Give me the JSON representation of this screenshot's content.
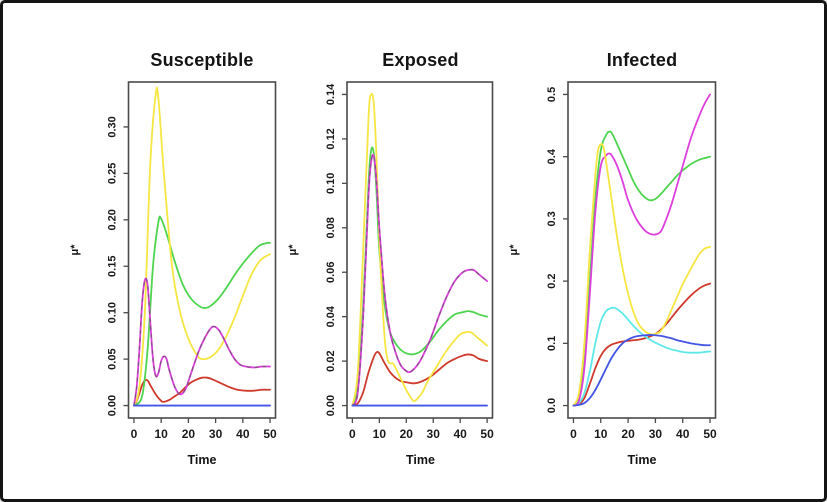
{
  "window": {
    "background": "#ffffff",
    "border_color": "#141414",
    "axis_color": "#4a4a4a",
    "text_color": "#1a1a1a"
  },
  "chart_data": [
    {
      "type": "line",
      "title": "Susceptible",
      "xlabel": "Time",
      "ylabel": "μ*",
      "xlim": [
        0,
        50
      ],
      "ylim": [
        0,
        0.335
      ],
      "grid": false,
      "legend": "none",
      "xticks": {
        "values": [
          0,
          10,
          20,
          30,
          40,
          50
        ],
        "labels": [
          "0",
          "10",
          "20",
          "30",
          "40",
          "50"
        ]
      },
      "yticks": {
        "values": [
          0,
          0.05,
          0.1,
          0.15,
          0.2,
          0.25,
          0.3
        ],
        "labels": [
          "0.00",
          "0.05",
          "0.10",
          "0.15",
          "0.20",
          "0.25",
          "0.30"
        ]
      },
      "series": [
        {
          "name": "red",
          "color": "#cf3a2c",
          "x": [
            0,
            1,
            2,
            3,
            4,
            5,
            6,
            8,
            10,
            11,
            13,
            15,
            17,
            19,
            21,
            23,
            25,
            27,
            29,
            32,
            35,
            38,
            41,
            44,
            47,
            50
          ],
          "y": [
            0,
            0.005,
            0.013,
            0.022,
            0.027,
            0.027,
            0.022,
            0.012,
            0.005,
            0.004,
            0.006,
            0.01,
            0.014,
            0.02,
            0.025,
            0.028,
            0.03,
            0.03,
            0.028,
            0.024,
            0.02,
            0.017,
            0.016,
            0.016,
            0.017,
            0.017
          ]
        },
        {
          "name": "green",
          "color": "#4ed44e",
          "x": [
            0,
            3,
            5,
            7,
            9,
            10,
            12,
            15,
            18,
            21,
            24,
            26,
            28,
            31,
            34,
            38,
            42,
            46,
            49,
            50
          ],
          "y": [
            0,
            0.01,
            0.06,
            0.15,
            0.198,
            0.201,
            0.185,
            0.155,
            0.13,
            0.115,
            0.107,
            0.105,
            0.107,
            0.115,
            0.127,
            0.145,
            0.16,
            0.172,
            0.175,
            0.175
          ]
        },
        {
          "name": "yellow",
          "color": "#f5e642",
          "x": [
            0,
            2,
            4,
            6,
            8,
            9,
            11,
            14,
            17,
            20,
            23,
            25,
            28,
            31,
            34,
            37,
            40,
            43,
            46,
            48,
            50
          ],
          "y": [
            0,
            0.02,
            0.1,
            0.26,
            0.335,
            0.33,
            0.25,
            0.15,
            0.1,
            0.072,
            0.055,
            0.05,
            0.052,
            0.06,
            0.075,
            0.095,
            0.118,
            0.14,
            0.155,
            0.16,
            0.163
          ]
        },
        {
          "name": "magenta",
          "color": "#dd3fdd",
          "dash_overlay": "#5a5a5a",
          "x": [
            0,
            1,
            2,
            3,
            4,
            5,
            6,
            7,
            8,
            9,
            10,
            11,
            12,
            13,
            15,
            17,
            19,
            21,
            24,
            27,
            29,
            31,
            33,
            35,
            37,
            39,
            41,
            44,
            47,
            50
          ],
          "y": [
            0,
            0.02,
            0.06,
            0.11,
            0.135,
            0.13,
            0.09,
            0.05,
            0.032,
            0.035,
            0.048,
            0.053,
            0.05,
            0.038,
            0.02,
            0.012,
            0.018,
            0.035,
            0.06,
            0.078,
            0.085,
            0.082,
            0.072,
            0.06,
            0.05,
            0.044,
            0.042,
            0.041,
            0.042,
            0.042
          ]
        },
        {
          "name": "blue",
          "color": "#4455e6",
          "x": [
            0,
            10,
            20,
            30,
            40,
            50
          ],
          "y": [
            0,
            0,
            0,
            0,
            0,
            0
          ]
        }
      ]
    },
    {
      "type": "line",
      "title": "Exposed",
      "xlabel": "Time",
      "ylabel": "μ*",
      "xlim": [
        0,
        50
      ],
      "ylim": [
        0,
        0.14
      ],
      "grid": false,
      "legend": "none",
      "xticks": {
        "values": [
          0,
          10,
          20,
          30,
          40,
          50
        ],
        "labels": [
          "0",
          "10",
          "20",
          "30",
          "40",
          "50"
        ]
      },
      "yticks": {
        "values": [
          0,
          0.02,
          0.04,
          0.06,
          0.08,
          0.1,
          0.12,
          0.14
        ],
        "labels": [
          "0.00",
          "0.02",
          "0.04",
          "0.06",
          "0.08",
          "0.10",
          "0.12",
          "0.14"
        ]
      },
      "series": [
        {
          "name": "red",
          "color": "#cf3a2c",
          "x": [
            0,
            2,
            4,
            6,
            8,
            9,
            10,
            12,
            14,
            16,
            18,
            20,
            23,
            26,
            29,
            32,
            35,
            38,
            41,
            43,
            45,
            47,
            50
          ],
          "y": [
            0,
            0.001,
            0.006,
            0.015,
            0.022,
            0.024,
            0.0235,
            0.019,
            0.015,
            0.0125,
            0.011,
            0.0105,
            0.01,
            0.011,
            0.013,
            0.016,
            0.019,
            0.021,
            0.0225,
            0.023,
            0.0225,
            0.021,
            0.02
          ]
        },
        {
          "name": "green",
          "color": "#4ed44e",
          "x": [
            0,
            2,
            4,
            6,
            7,
            8,
            9,
            10,
            12,
            14,
            16,
            18,
            20,
            22,
            24,
            26,
            29,
            32,
            35,
            38,
            41,
            43,
            45,
            47,
            50
          ],
          "y": [
            0,
            0.008,
            0.045,
            0.1,
            0.115,
            0.113,
            0.095,
            0.07,
            0.045,
            0.033,
            0.028,
            0.025,
            0.0235,
            0.023,
            0.0235,
            0.025,
            0.029,
            0.034,
            0.038,
            0.041,
            0.042,
            0.0425,
            0.042,
            0.041,
            0.04
          ]
        },
        {
          "name": "yellow",
          "color": "#f5e642",
          "x": [
            0,
            2,
            4,
            6,
            7,
            8,
            9,
            10,
            11,
            12,
            13,
            14,
            15,
            16,
            18,
            20,
            22,
            23,
            24,
            26,
            28,
            31,
            34,
            37,
            40,
            42,
            44,
            46,
            48,
            50
          ],
          "y": [
            0,
            0.015,
            0.07,
            0.13,
            0.14,
            0.135,
            0.11,
            0.075,
            0.05,
            0.03,
            0.021,
            0.019,
            0.019,
            0.017,
            0.012,
            0.007,
            0.003,
            0.002,
            0.003,
            0.006,
            0.011,
            0.017,
            0.023,
            0.028,
            0.032,
            0.033,
            0.033,
            0.031,
            0.029,
            0.027
          ]
        },
        {
          "name": "magenta",
          "color": "#dd3fdd",
          "dash_overlay": "#5a5a5a",
          "x": [
            0,
            2,
            4,
            6,
            7,
            8,
            9,
            10,
            12,
            14,
            16,
            18,
            20,
            21,
            22,
            24,
            26,
            29,
            32,
            35,
            38,
            41,
            43,
            45,
            47,
            50
          ],
          "y": [
            0,
            0.006,
            0.04,
            0.095,
            0.11,
            0.112,
            0.1,
            0.08,
            0.05,
            0.033,
            0.024,
            0.018,
            0.0155,
            0.015,
            0.0155,
            0.018,
            0.022,
            0.03,
            0.04,
            0.049,
            0.056,
            0.06,
            0.061,
            0.061,
            0.059,
            0.056
          ]
        },
        {
          "name": "blue",
          "color": "#4455e6",
          "x": [
            0,
            10,
            20,
            30,
            40,
            50
          ],
          "y": [
            0,
            0,
            0,
            0,
            0,
            0
          ]
        }
      ]
    },
    {
      "type": "line",
      "title": "Infected",
      "xlabel": "Time",
      "ylabel": "μ*",
      "xlim": [
        0,
        50
      ],
      "ylim": [
        0,
        0.5
      ],
      "grid": false,
      "legend": "none",
      "xticks": {
        "values": [
          0,
          10,
          20,
          30,
          40,
          50
        ],
        "labels": [
          "0",
          "10",
          "20",
          "30",
          "40",
          "50"
        ]
      },
      "yticks": {
        "values": [
          0,
          0.1,
          0.2,
          0.3,
          0.4,
          0.5
        ],
        "labels": [
          "0.0",
          "0.1",
          "0.2",
          "0.3",
          "0.4",
          "0.5"
        ]
      },
      "series": [
        {
          "name": "red",
          "color": "#cf3a2c",
          "x": [
            0,
            2,
            4,
            6,
            8,
            10,
            12,
            14,
            16,
            18,
            20,
            22,
            24,
            26,
            28,
            30,
            32,
            34,
            36,
            38,
            40,
            43,
            46,
            48,
            50
          ],
          "y": [
            0,
            0.002,
            0.012,
            0.035,
            0.06,
            0.08,
            0.092,
            0.098,
            0.101,
            0.103,
            0.104,
            0.105,
            0.106,
            0.108,
            0.111,
            0.115,
            0.122,
            0.131,
            0.142,
            0.153,
            0.163,
            0.177,
            0.188,
            0.193,
            0.196
          ]
        },
        {
          "name": "cyan",
          "color": "#5fe8e8",
          "x": [
            0,
            2,
            4,
            6,
            8,
            10,
            12,
            14,
            15,
            16,
            18,
            20,
            22,
            24,
            26,
            28,
            30,
            32,
            34,
            36,
            38,
            40,
            42,
            44,
            46,
            48,
            50
          ],
          "y": [
            0,
            0.004,
            0.02,
            0.055,
            0.1,
            0.135,
            0.152,
            0.157,
            0.157,
            0.155,
            0.148,
            0.138,
            0.128,
            0.119,
            0.112,
            0.106,
            0.101,
            0.097,
            0.093,
            0.09,
            0.088,
            0.086,
            0.085,
            0.085,
            0.085,
            0.086,
            0.087
          ]
        },
        {
          "name": "green",
          "color": "#4ed44e",
          "x": [
            0,
            2,
            4,
            6,
            8,
            10,
            12,
            13,
            14,
            16,
            18,
            20,
            22,
            24,
            26,
            28,
            30,
            32,
            34,
            36,
            38,
            40,
            43,
            46,
            50
          ],
          "y": [
            0,
            0.01,
            0.07,
            0.2,
            0.33,
            0.41,
            0.435,
            0.44,
            0.438,
            0.42,
            0.4,
            0.38,
            0.36,
            0.345,
            0.335,
            0.33,
            0.332,
            0.34,
            0.35,
            0.36,
            0.37,
            0.378,
            0.388,
            0.395,
            0.4
          ]
        },
        {
          "name": "magenta",
          "color": "#dd3fdd",
          "x": [
            0,
            2,
            4,
            6,
            8,
            10,
            12,
            13,
            14,
            16,
            18,
            20,
            23,
            26,
            28,
            30,
            32,
            34,
            36,
            38,
            40,
            43,
            46,
            48,
            50
          ],
          "y": [
            0,
            0.008,
            0.06,
            0.18,
            0.31,
            0.385,
            0.402,
            0.405,
            0.402,
            0.385,
            0.36,
            0.33,
            0.3,
            0.282,
            0.276,
            0.275,
            0.28,
            0.3,
            0.325,
            0.355,
            0.385,
            0.43,
            0.465,
            0.485,
            0.5
          ]
        },
        {
          "name": "yellow",
          "color": "#f5e642",
          "x": [
            0,
            2,
            4,
            6,
            8,
            9,
            10,
            11,
            12,
            14,
            16,
            18,
            20,
            22,
            24,
            26,
            28,
            30,
            32,
            34,
            36,
            38,
            40,
            43,
            46,
            48,
            50
          ],
          "y": [
            0,
            0.02,
            0.1,
            0.25,
            0.37,
            0.41,
            0.42,
            0.415,
            0.39,
            0.33,
            0.27,
            0.22,
            0.18,
            0.15,
            0.13,
            0.12,
            0.115,
            0.115,
            0.12,
            0.135,
            0.155,
            0.175,
            0.195,
            0.22,
            0.243,
            0.252,
            0.255
          ]
        },
        {
          "name": "blue",
          "color": "#4455e6",
          "x": [
            0,
            2,
            4,
            6,
            8,
            10,
            12,
            14,
            16,
            18,
            20,
            22,
            24,
            26,
            28,
            30,
            32,
            34,
            36,
            38,
            40,
            43,
            46,
            48,
            50
          ],
          "y": [
            0,
            0.001,
            0.004,
            0.012,
            0.025,
            0.042,
            0.06,
            0.077,
            0.09,
            0.1,
            0.106,
            0.11,
            0.112,
            0.113,
            0.1135,
            0.113,
            0.112,
            0.11,
            0.108,
            0.105,
            0.103,
            0.1,
            0.098,
            0.097,
            0.097
          ]
        }
      ]
    }
  ]
}
